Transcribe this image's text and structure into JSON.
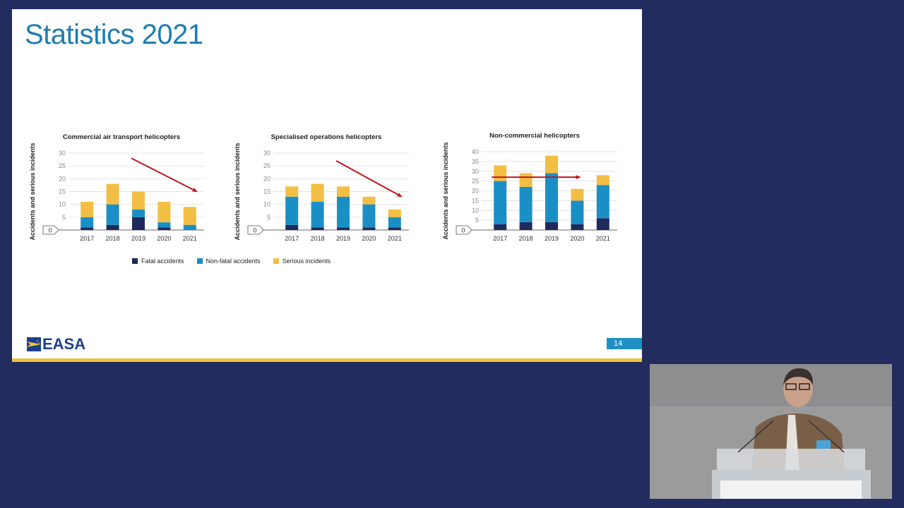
{
  "slide": {
    "title": "Statistics 2021",
    "page_number": "14",
    "logo_text": "EASA"
  },
  "colors": {
    "fatal": "#1e2a5c",
    "non_fatal": "#1a8fc6",
    "serious": "#f2bf44",
    "arrow": "#c0161e",
    "title": "#1b7db1",
    "accent_stripe": "#f0c23d",
    "background": "#222c5e"
  },
  "legend": [
    {
      "label": "Fatal accidents",
      "color": "#1e2a5c"
    },
    {
      "label": "Non-fatal accidents",
      "color": "#1a8fc6"
    },
    {
      "label": "Serious incidents",
      "color": "#f2bf44"
    }
  ],
  "chart_data": [
    {
      "type": "bar",
      "stacked": true,
      "title": "Commercial air transport helicopters",
      "ylabel": "Accidents and serious incidents",
      "categories": [
        "2017",
        "2018",
        "2019",
        "2020",
        "2021"
      ],
      "yticks": [
        "0",
        "5",
        "10",
        "15",
        "20",
        "25",
        "30"
      ],
      "ylim": [
        0,
        30
      ],
      "series": [
        {
          "name": "Fatal accidents",
          "values": [
            1,
            2,
            5,
            1,
            0
          ]
        },
        {
          "name": "Non-fatal accidents",
          "values": [
            4,
            8,
            3,
            2,
            2
          ]
        },
        {
          "name": "Serious incidents",
          "values": [
            6,
            8,
            7,
            8,
            7
          ]
        }
      ],
      "trend_arrow": {
        "from": [
          "2019",
          28
        ],
        "to": [
          "2021",
          15
        ],
        "direction": "down"
      }
    },
    {
      "type": "bar",
      "stacked": true,
      "title": "Specialised operations helicopters",
      "ylabel": "Accidents and serious incidents",
      "categories": [
        "2017",
        "2018",
        "2019",
        "2020",
        "2021"
      ],
      "yticks": [
        "0",
        "5",
        "10",
        "15",
        "20",
        "25",
        "30"
      ],
      "ylim": [
        0,
        30
      ],
      "series": [
        {
          "name": "Fatal accidents",
          "values": [
            2,
            1,
            1,
            1,
            1
          ]
        },
        {
          "name": "Non-fatal accidents",
          "values": [
            11,
            10,
            12,
            9,
            4
          ]
        },
        {
          "name": "Serious incidents",
          "values": [
            4,
            7,
            4,
            3,
            3
          ]
        }
      ],
      "trend_arrow": {
        "from": [
          "2019",
          27
        ],
        "to": [
          "2021",
          13
        ],
        "direction": "down"
      }
    },
    {
      "type": "bar",
      "stacked": true,
      "title": "Non-commercial helicopters",
      "ylabel": "Accidents and serious incidents",
      "categories": [
        "2017",
        "2018",
        "2019",
        "2020",
        "2021"
      ],
      "yticks": [
        "0",
        "5",
        "10",
        "15",
        "20",
        "25",
        "30",
        "35",
        "40"
      ],
      "ylim": [
        0,
        40
      ],
      "series": [
        {
          "name": "Fatal accidents",
          "values": [
            3,
            4,
            4,
            3,
            6
          ]
        },
        {
          "name": "Non-fatal accidents",
          "values": [
            22,
            18,
            25,
            12,
            17
          ]
        },
        {
          "name": "Serious incidents",
          "values": [
            8,
            7,
            9,
            6,
            5
          ]
        }
      ],
      "trend_arrow": {
        "from": [
          "2017",
          27
        ],
        "to": [
          "2020",
          27
        ],
        "direction": "flat"
      }
    }
  ]
}
